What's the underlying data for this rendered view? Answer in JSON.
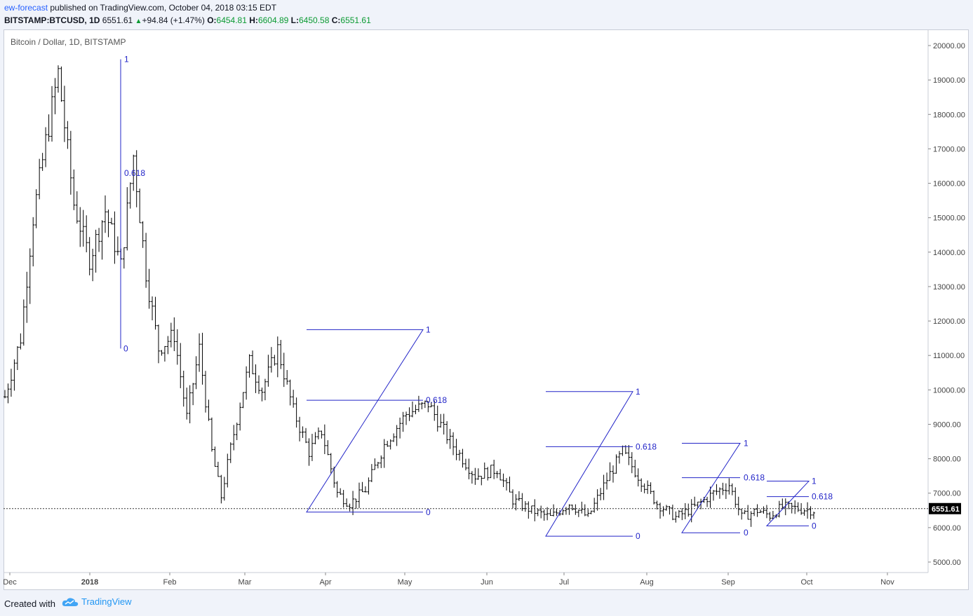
{
  "header": {
    "author": "ew-forecast",
    "published_text": "published on TradingView.com, October 04, 2018 03:15 EDT",
    "symbol": "BITSTAMP:BTCUSD, 1D",
    "last": "6551.61",
    "change": "+94.84 (+1.47%)",
    "o_label": "O:",
    "o": "6454.81",
    "h_label": "H:",
    "h": "6604.89",
    "l_label": "L:",
    "l": "6450.58",
    "c_label": "C:",
    "c": "6551.61"
  },
  "footer": {
    "created": "Created with",
    "brand": "TradingView"
  },
  "colors": {
    "wave": "#2224c8",
    "bars": "#000000",
    "price_tag_bg": "#000000",
    "price_tag_text": "#ffffff"
  },
  "chart_data": {
    "type": "ohlc",
    "title": "Bitcoin / Dollar, 1D, BITSTAMP",
    "ylim": [
      4600,
      20600
    ],
    "yticks": [
      "20000.00",
      "19000.00",
      "18000.00",
      "17000.00",
      "16000.00",
      "15000.00",
      "14000.00",
      "13000.00",
      "12000.00",
      "11000.00",
      "10000.00",
      "9000.00",
      "8000.00",
      "7000.00",
      "6000.00",
      "5000.00"
    ],
    "xticks": [
      "Dec",
      "2018",
      "Feb",
      "Mar",
      "Apr",
      "May",
      "Jun",
      "Jul",
      "Aug",
      "Sep",
      "Oct",
      "Nov"
    ],
    "current_price": "6551.61",
    "price_path": [
      {
        "day": 0,
        "price": 9800
      },
      {
        "day": 5,
        "price": 11500
      },
      {
        "day": 9,
        "price": 15000
      },
      {
        "day": 13,
        "price": 17200
      },
      {
        "day": 17,
        "price": 19200
      },
      {
        "day": 22,
        "price": 15400
      },
      {
        "day": 27,
        "price": 13800
      },
      {
        "day": 32,
        "price": 15200
      },
      {
        "day": 37,
        "price": 13600
      },
      {
        "day": 41,
        "price": 16800
      },
      {
        "day": 45,
        "price": 13400
      },
      {
        "day": 49,
        "price": 11200
      },
      {
        "day": 54,
        "price": 11600
      },
      {
        "day": 58,
        "price": 9200
      },
      {
        "day": 62,
        "price": 11200
      },
      {
        "day": 66,
        "price": 8200
      },
      {
        "day": 69,
        "price": 6900
      },
      {
        "day": 72,
        "price": 8300
      },
      {
        "day": 75,
        "price": 9600
      },
      {
        "day": 78,
        "price": 10800
      },
      {
        "day": 82,
        "price": 10000
      },
      {
        "day": 87,
        "price": 11200
      },
      {
        "day": 92,
        "price": 9400
      },
      {
        "day": 97,
        "price": 8200
      },
      {
        "day": 101,
        "price": 8800
      },
      {
        "day": 106,
        "price": 7000
      },
      {
        "day": 110,
        "price": 6700
      },
      {
        "day": 115,
        "price": 7100
      },
      {
        "day": 121,
        "price": 8400
      },
      {
        "day": 128,
        "price": 9300
      },
      {
        "day": 135,
        "price": 9600
      },
      {
        "day": 142,
        "price": 8500
      },
      {
        "day": 150,
        "price": 7500
      },
      {
        "day": 157,
        "price": 7700
      },
      {
        "day": 162,
        "price": 6800
      },
      {
        "day": 168,
        "price": 6500
      },
      {
        "day": 174,
        "price": 6300
      },
      {
        "day": 180,
        "price": 6700
      },
      {
        "day": 186,
        "price": 6300
      },
      {
        "day": 192,
        "price": 7400
      },
      {
        "day": 197,
        "price": 8200
      },
      {
        "day": 202,
        "price": 7500
      },
      {
        "day": 208,
        "price": 6700
      },
      {
        "day": 214,
        "price": 6300
      },
      {
        "day": 220,
        "price": 6600
      },
      {
        "day": 226,
        "price": 7000
      },
      {
        "day": 231,
        "price": 7250
      },
      {
        "day": 235,
        "price": 6300
      },
      {
        "day": 240,
        "price": 6500
      },
      {
        "day": 244,
        "price": 6350
      },
      {
        "day": 248,
        "price": 6600
      },
      {
        "day": 253,
        "price": 6550
      },
      {
        "day": 258,
        "price": 6500
      }
    ],
    "wave_annotations": [
      {
        "vertical": true,
        "top": 19600,
        "bottom": 11100,
        "levels": [
          {
            "label": "1",
            "price": 19600
          },
          {
            "label": "0.618",
            "price": 16300
          },
          {
            "label": "0",
            "price": 11200
          }
        ]
      },
      {
        "zigzag": [
          [
            100,
            6450,
            0
          ],
          [
            100,
            11750,
            1
          ],
          [
            100,
            11750,
            1
          ]
        ],
        "levels": [
          {
            "label": "1",
            "price": 11750
          },
          {
            "label": "0.618",
            "price": 9700
          },
          {
            "label": "0",
            "price": 6450
          }
        ]
      },
      {
        "levels": [
          {
            "label": "1",
            "price": 9950
          },
          {
            "label": "0.618",
            "price": 8350
          },
          {
            "label": "0",
            "price": 5750
          }
        ]
      },
      {
        "levels": [
          {
            "label": "1",
            "price": 8450
          },
          {
            "label": "0.618",
            "price": 7450
          },
          {
            "label": "0",
            "price": 5850
          }
        ]
      },
      {
        "levels": [
          {
            "label": "1",
            "price": 7350
          },
          {
            "label": "0.618",
            "price": 6900
          },
          {
            "label": "0",
            "price": 6050
          }
        ]
      }
    ]
  }
}
